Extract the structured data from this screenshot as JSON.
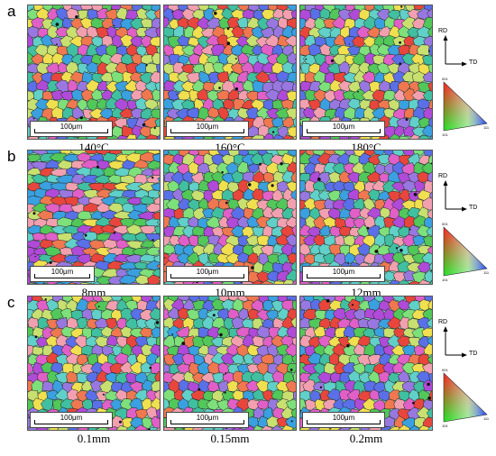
{
  "rows": [
    {
      "label": "a",
      "panels": [
        {
          "scale": "100μm",
          "caption": "140°C",
          "palette": "a1"
        },
        {
          "scale": "100μm",
          "caption": "160°C",
          "palette": "a2"
        },
        {
          "scale": "100μm",
          "caption": "180°C",
          "palette": "a3"
        }
      ]
    },
    {
      "label": "b",
      "panels": [
        {
          "scale": "100μm",
          "caption": "8mm",
          "palette": "b1"
        },
        {
          "scale": "100μm",
          "caption": "10mm",
          "palette": "b2"
        },
        {
          "scale": "100μm",
          "caption": "12mm",
          "palette": "b3"
        }
      ]
    },
    {
      "label": "c",
      "panels": [
        {
          "scale": "100μm",
          "caption": "0.1mm",
          "palette": "c1"
        },
        {
          "scale": "100μm",
          "caption": "0.15mm",
          "palette": "c2"
        },
        {
          "scale": "100μm",
          "caption": "0.2mm",
          "palette": "c3"
        }
      ]
    }
  ],
  "legend": {
    "rd": "RD",
    "td": "TD",
    "corner_001": "001",
    "corner_101": "101",
    "corner_111": "111"
  },
  "ipf_colors": [
    "#e8463c",
    "#f07850",
    "#52c85a",
    "#7ee07a",
    "#3aa0e0",
    "#5a70e8",
    "#b04ad8",
    "#e060c8",
    "#f0e050",
    "#60d0c8",
    "#f2a0b0",
    "#c8e070",
    "#9878e0",
    "#40c0a0"
  ]
}
